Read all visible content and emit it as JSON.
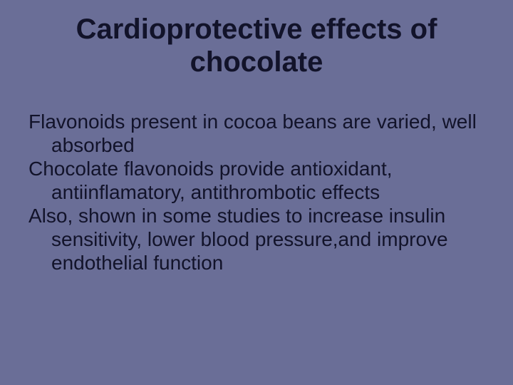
{
  "slide": {
    "background_color": "#6a6e97",
    "text_color": "#12132a",
    "title": "Cardioprotective effects of chocolate",
    "title_fontsize": 40,
    "body_fontsize": 28,
    "paragraphs": [
      "Flavonoids present in cocoa beans are varied, well absorbed",
      "Chocolate flavonoids provide antioxidant, antiinflamatory, antithrombotic effects",
      "Also, shown in some studies to increase insulin sensitivity, lower blood pressure,and improve endothelial function"
    ]
  }
}
